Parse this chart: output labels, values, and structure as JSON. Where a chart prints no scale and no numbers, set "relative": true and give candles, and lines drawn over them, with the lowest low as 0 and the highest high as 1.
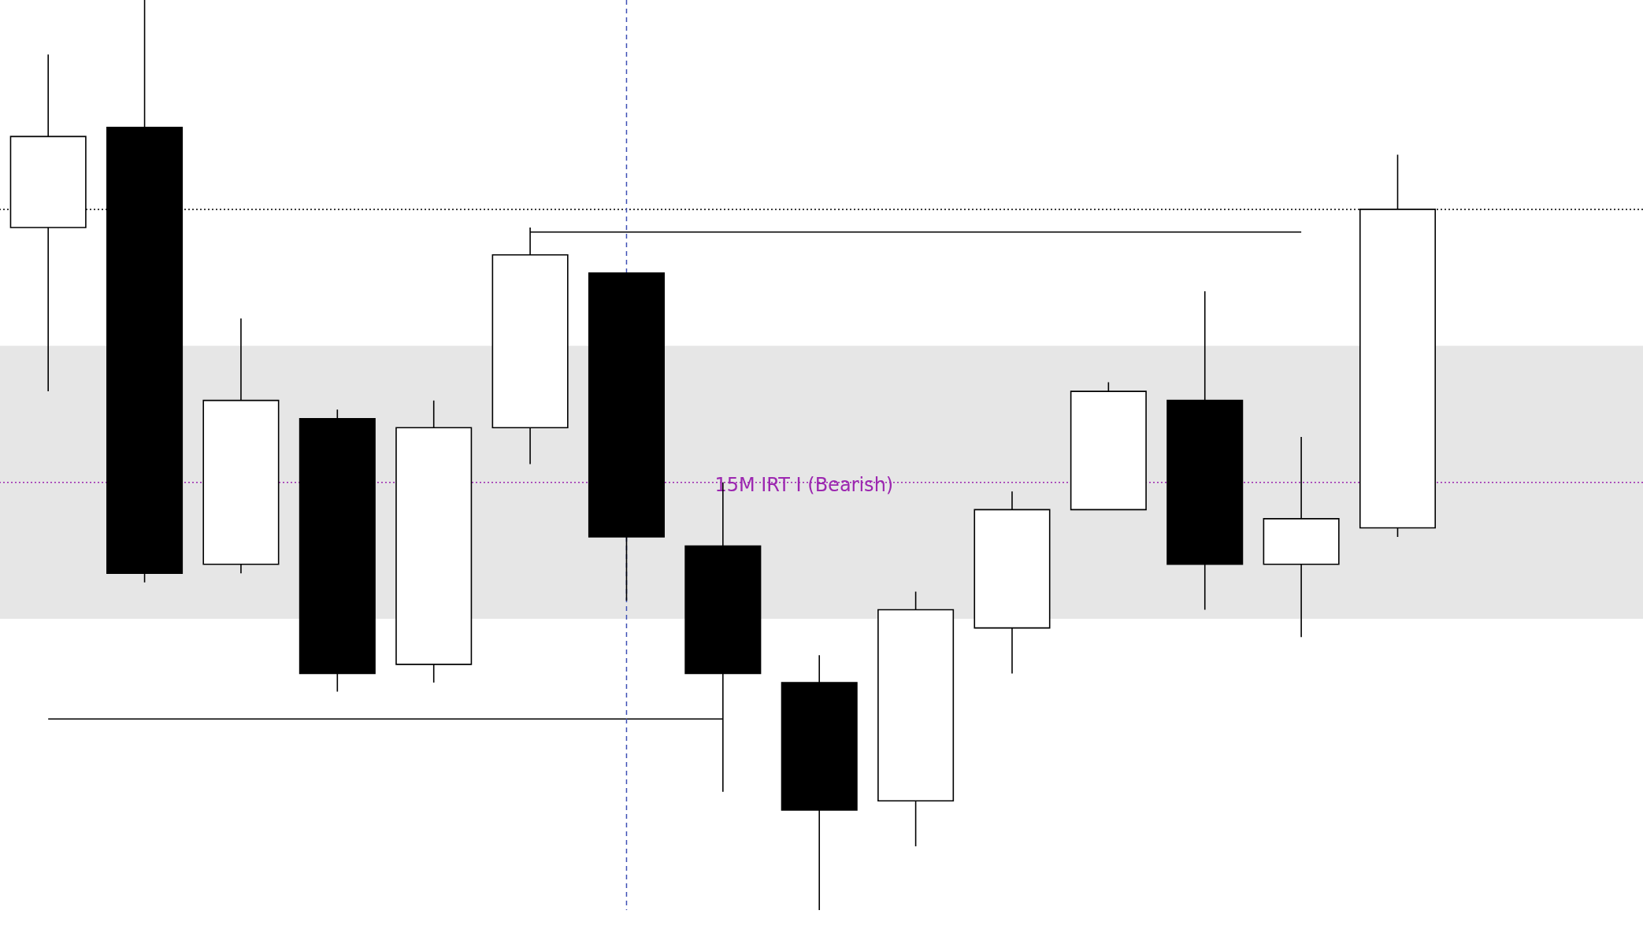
{
  "chart_data": {
    "type": "candlestick",
    "relative": true,
    "categories": [
      null,
      null,
      null,
      null,
      null,
      null,
      null,
      null,
      null,
      null,
      null,
      null,
      null,
      null,
      null
    ],
    "ohlc": [
      [
        0.75,
        0.94,
        0.57,
        0.85
      ],
      [
        0.86,
        1.0,
        0.36,
        0.37
      ],
      [
        0.38,
        0.65,
        0.37,
        0.56
      ],
      [
        0.54,
        0.55,
        0.24,
        0.26
      ],
      [
        0.27,
        0.56,
        0.25,
        0.53
      ],
      [
        0.53,
        0.75,
        0.49,
        0.72
      ],
      [
        0.7,
        0.7,
        0.34,
        0.41
      ],
      [
        0.4,
        0.47,
        0.13,
        0.26
      ],
      [
        0.25,
        0.28,
        0,
        0.11
      ],
      [
        0.12,
        0.35,
        0.07,
        0.33
      ],
      [
        0.31,
        0.46,
        0.26,
        0.44
      ],
      [
        0.44,
        0.58,
        0.44,
        0.57
      ],
      [
        0.56,
        0.68,
        0.33,
        0.38
      ],
      [
        0.38,
        0.52,
        0.3,
        0.43
      ],
      [
        0.42,
        0.83,
        0.41,
        0.77
      ]
    ],
    "series": [
      {
        "type": "line",
        "color": "#000000",
        "values": [
          null,
          null,
          null,
          null,
          null,
          0.745,
          0.745,
          0.745,
          0.745,
          0.745,
          0.745,
          0.745,
          0.745,
          0.745,
          null
        ]
      },
      {
        "type": "line",
        "color": "#000000",
        "values": [
          0.21,
          0.21,
          0.21,
          0.21,
          0.21,
          0.21,
          0.21,
          0.21,
          null,
          null,
          null,
          null,
          null,
          null,
          null
        ]
      }
    ],
    "ref_lines": [
      {
        "axis": "y",
        "value": 0.77,
        "color": "#000000",
        "line_style": "dotted"
      },
      {
        "axis": "y",
        "value": 0.47,
        "color": "#9c27b0",
        "line_style": "dotted",
        "label": "15M IRT I (Bearish)"
      }
    ],
    "bands": [
      {
        "axis": "y",
        "from": 0.32,
        "to": 0.62,
        "color": "#e6e6e6"
      }
    ]
  }
}
